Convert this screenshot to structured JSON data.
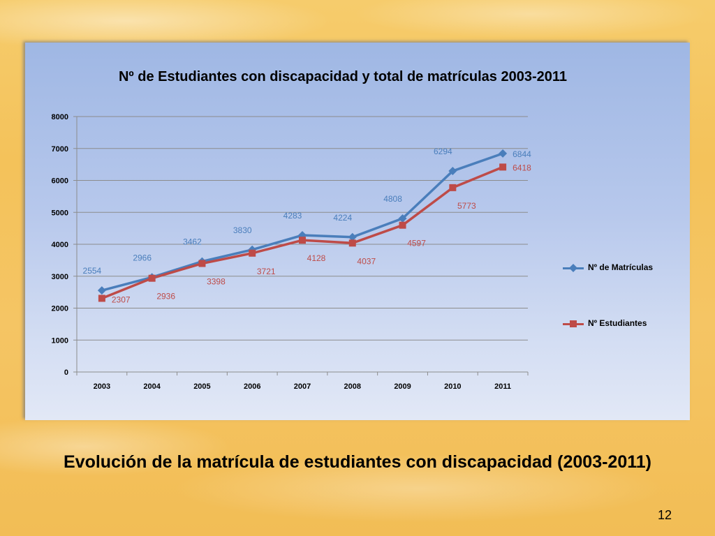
{
  "slide": {
    "caption": "Evolución de la matrícula de estudiantes con discapacidad (2003-2011)",
    "page_number": "12"
  },
  "chart_data": {
    "type": "line",
    "title": "Nº de Estudiantes con discapacidad y total de matrículas 2003-2011",
    "categories": [
      "2003",
      "2004",
      "2005",
      "2006",
      "2007",
      "2008",
      "2009",
      "2010",
      "2011"
    ],
    "ylim": [
      0,
      8000
    ],
    "yticks": [
      "0",
      "1000",
      "2000",
      "3000",
      "4000",
      "5000",
      "6000",
      "7000",
      "8000"
    ],
    "grid": true,
    "legend_position": "right",
    "xlabel": "",
    "ylabel": "",
    "series": [
      {
        "name": "Nº de Matrículas",
        "color": "#4a7ebb",
        "label_color": "#4a7ebb",
        "marker": "diamond",
        "values": [
          2554,
          2966,
          3462,
          3830,
          4283,
          4224,
          4808,
          6294,
          6844
        ]
      },
      {
        "name": "Nº Estudiantes",
        "color": "#be4b48",
        "label_color": "#be4b48",
        "marker": "square",
        "values": [
          2307,
          2936,
          3398,
          3721,
          4128,
          4037,
          4597,
          5773,
          6418
        ]
      }
    ]
  }
}
